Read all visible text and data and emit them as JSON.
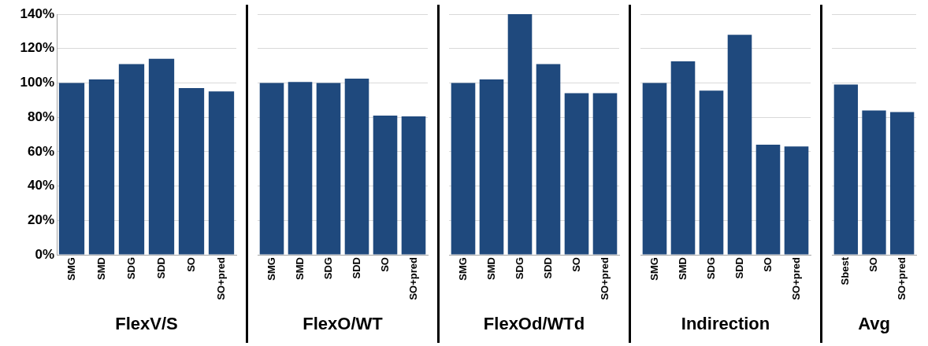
{
  "chart_data": [
    {
      "type": "bar",
      "categories": [
        "SMG",
        "SMD",
        "SDG",
        "SDD",
        "SO",
        "SO+pred"
      ],
      "values": [
        100,
        102,
        111,
        114,
        97,
        95
      ],
      "color": "#1f497d",
      "xlabel": "FlexV/S",
      "ylim": [
        0,
        140
      ],
      "yticks": [
        {
          "value": 0,
          "label": "0%"
        },
        {
          "value": 20,
          "label": "20%"
        },
        {
          "value": 40,
          "label": "40%"
        },
        {
          "value": 60,
          "label": "60%"
        },
        {
          "value": 80,
          "label": "80%"
        },
        {
          "value": 100,
          "label": "100%"
        },
        {
          "value": 120,
          "label": "120%"
        },
        {
          "value": 140,
          "label": "140%"
        }
      ],
      "grid": "y"
    },
    {
      "type": "bar",
      "categories": [
        "SMG",
        "SMD",
        "SDG",
        "SDD",
        "SO",
        "SO+pred"
      ],
      "values": [
        100,
        100.5,
        100,
        102.5,
        81,
        80.5
      ],
      "color": "#1f497d",
      "xlabel": "FlexO/WT",
      "ylim": [
        0,
        140
      ],
      "yticks": [
        {
          "value": 0,
          "label": null
        },
        {
          "value": 20,
          "label": null
        },
        {
          "value": 40,
          "label": null
        },
        {
          "value": 60,
          "label": null
        },
        {
          "value": 80,
          "label": null
        },
        {
          "value": 100,
          "label": null
        },
        {
          "value": 120,
          "label": null
        },
        {
          "value": 140,
          "label": null
        }
      ],
      "grid": "y",
      "tick_labels": "x"
    },
    {
      "type": "bar",
      "categories": [
        "SMG",
        "SMD",
        "SDG",
        "SDD",
        "SO",
        "SO+pred"
      ],
      "values": [
        100,
        102,
        140,
        111,
        94,
        94
      ],
      "color": "#1f497d",
      "xlabel": "FlexOd/WTd",
      "ylim": [
        0,
        140
      ],
      "yticks": [
        {
          "value": 0,
          "label": null
        },
        {
          "value": 20,
          "label": null
        },
        {
          "value": 40,
          "label": null
        },
        {
          "value": 60,
          "label": null
        },
        {
          "value": 80,
          "label": null
        },
        {
          "value": 100,
          "label": null
        },
        {
          "value": 120,
          "label": null
        },
        {
          "value": 140,
          "label": null
        }
      ],
      "grid": "y",
      "tick_labels": "x"
    },
    {
      "type": "bar",
      "categories": [
        "SMG",
        "SMD",
        "SDG",
        "SDD",
        "SO",
        "SO+pred"
      ],
      "values": [
        100,
        112.5,
        95.5,
        128,
        64,
        63
      ],
      "color": "#1f497d",
      "xlabel": "Indirection",
      "ylim": [
        0,
        140
      ],
      "yticks": [
        {
          "value": 0,
          "label": null
        },
        {
          "value": 20,
          "label": null
        },
        {
          "value": 40,
          "label": null
        },
        {
          "value": 60,
          "label": null
        },
        {
          "value": 80,
          "label": null
        },
        {
          "value": 100,
          "label": null
        },
        {
          "value": 120,
          "label": null
        },
        {
          "value": 140,
          "label": null
        }
      ],
      "grid": "y",
      "tick_labels": "x"
    },
    {
      "type": "bar",
      "categories": [
        "Sbest",
        "SO",
        "SO+pred"
      ],
      "values": [
        99,
        84,
        83
      ],
      "color": "#1f497d",
      "xlabel": "Avg",
      "ylim": [
        0,
        140
      ],
      "yticks": [
        {
          "value": 0,
          "label": null
        },
        {
          "value": 20,
          "label": null
        },
        {
          "value": 40,
          "label": null
        },
        {
          "value": 60,
          "label": null
        },
        {
          "value": 80,
          "label": null
        },
        {
          "value": 100,
          "label": null
        },
        {
          "value": 120,
          "label": null
        },
        {
          "value": 140,
          "label": null
        }
      ],
      "grid": "y",
      "tick_labels": "x"
    }
  ]
}
